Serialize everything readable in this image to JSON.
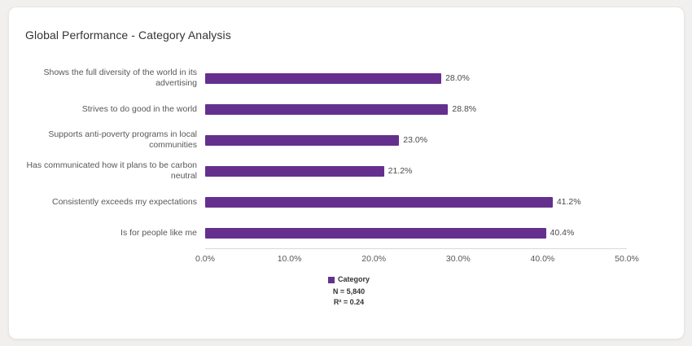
{
  "page": {
    "title": "Global Performance - Category Analysis"
  },
  "colors": {
    "bar": "#65308d",
    "card_bg": "#ffffff",
    "page_bg": "#f1f0ee",
    "axis_line": "#d9d9d9",
    "label_text": "#585858"
  },
  "chart_data": {
    "type": "bar",
    "orientation": "horizontal",
    "title": "Global Performance - Category Analysis",
    "categories": [
      "Shows the full diversity of the world in its advertising",
      "Strives to do good in the world",
      "Supports anti-poverty programs in local communities",
      "Has communicated how it plans to be carbon neutral",
      "Consistently exceeds my expectations",
      "Is for people like me"
    ],
    "values": [
      28.0,
      28.8,
      23.0,
      21.2,
      41.2,
      40.4
    ],
    "value_labels": [
      "28.0%",
      "28.8%",
      "23.0%",
      "21.2%",
      "41.2%",
      "40.4%"
    ],
    "xlim": [
      0,
      50
    ],
    "x_tick_values": [
      0,
      10,
      20,
      30,
      40,
      50
    ],
    "x_ticks": [
      "0.0%",
      "10.0%",
      "20.0%",
      "30.0%",
      "40.0%",
      "50.0%"
    ],
    "grid": "off",
    "legend_position": "bottom",
    "legend": {
      "label": "Category",
      "n_label": "N = 5,840",
      "r2_label": "R² = 0.24"
    }
  }
}
